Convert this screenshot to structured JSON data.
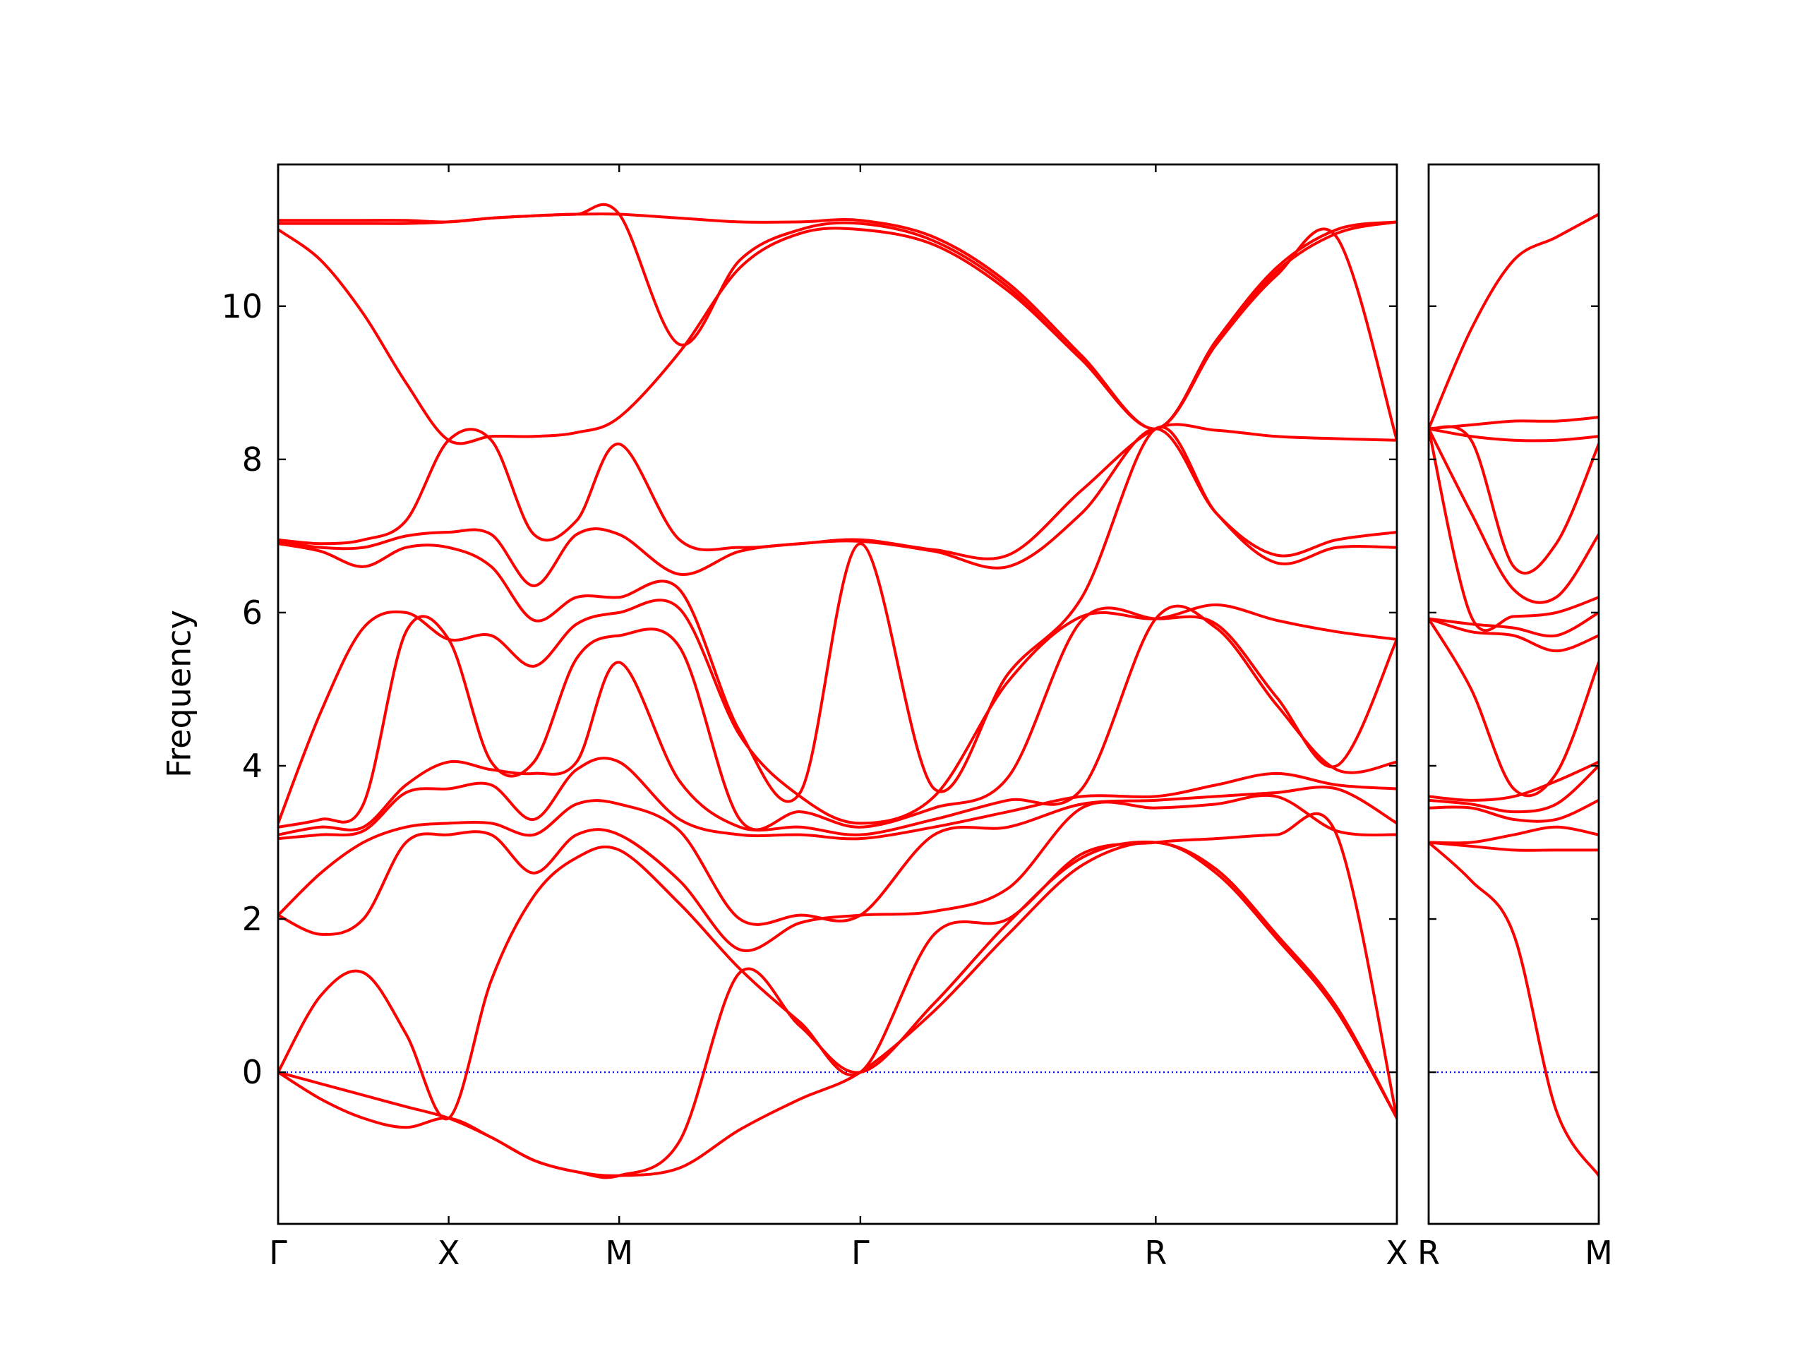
{
  "chart_data": [
    {
      "type": "line",
      "ylabel": "Frequency",
      "color": "#ff0000",
      "x": [
        0,
        0.25,
        0.5,
        0.75,
        1,
        1.25,
        1.5,
        1.75,
        2,
        2.354,
        2.707,
        3.061,
        3.414,
        3.847,
        4.28,
        4.713,
        5.146,
        5.5,
        5.853,
        6.207,
        6.56
      ],
      "xlim": [
        0,
        6.56
      ],
      "xticks": [
        {
          "value": 0,
          "label": "Γ"
        },
        {
          "value": 1,
          "label": "X"
        },
        {
          "value": 2,
          "label": "M"
        },
        {
          "value": 3.414,
          "label": "Γ"
        },
        {
          "value": 5.146,
          "label": "R"
        },
        {
          "value": 6.56,
          "label": "X"
        }
      ],
      "ylim": [
        -1.98,
        11.85
      ],
      "yticks": [
        0,
        2,
        4,
        6,
        8,
        10
      ],
      "ytick_labels": true,
      "hline": {
        "value": 0,
        "color": "#0000ff"
      },
      "series": [
        {
          "values": [
            0,
            -0.35,
            -0.6,
            -0.72,
            -0.6,
            -0.85,
            -1.15,
            -1.3,
            -1.35,
            -1.25,
            -0.75,
            -0.35,
            0,
            0.8,
            1.8,
            2.7,
            3,
            2.6,
            1.75,
            0.8,
            -0.6
          ]
        },
        {
          "values": [
            0,
            -0.15,
            -0.3,
            -0.45,
            -0.6,
            -0.85,
            -1.15,
            -1.3,
            -1.35,
            -0.9,
            1.3,
            0.6,
            0,
            0.9,
            1.95,
            2.8,
            3,
            2.65,
            1.8,
            0.85,
            -0.6
          ]
        },
        {
          "values": [
            0,
            1.0,
            1.3,
            0.5,
            -0.6,
            1.2,
            2.3,
            2.8,
            2.9,
            2.2,
            1.35,
            0.65,
            0,
            1.8,
            2.0,
            2.85,
            3,
            3.05,
            3.1,
            3.1,
            -0.6
          ]
        },
        {
          "values": [
            2.05,
            1.8,
            2.0,
            3.0,
            3.1,
            3.1,
            2.6,
            3.1,
            3.1,
            2.5,
            1.6,
            1.95,
            2.05,
            2.1,
            2.4,
            3.45,
            3.45,
            3.5,
            3.6,
            3.15,
            3.1
          ]
        },
        {
          "values": [
            2.05,
            2.6,
            3.0,
            3.2,
            3.25,
            3.25,
            3.1,
            3.5,
            3.5,
            3.15,
            2.0,
            2.05,
            2.05,
            3.1,
            3.2,
            3.5,
            3.55,
            3.6,
            3.65,
            3.7,
            3.25
          ]
        },
        {
          "values": [
            3.05,
            3.1,
            3.15,
            3.65,
            3.7,
            3.75,
            3.3,
            3.95,
            4.05,
            3.3,
            3.1,
            3.1,
            3.05,
            3.2,
            3.4,
            3.6,
            3.6,
            3.75,
            3.9,
            3.75,
            3.7
          ]
        },
        {
          "values": [
            3.1,
            3.2,
            3.2,
            3.75,
            4.05,
            3.95,
            3.9,
            4.05,
            5.35,
            3.8,
            3.2,
            3.2,
            3.1,
            3.3,
            3.55,
            3.7,
            5.92,
            5.8,
            4.8,
            3.95,
            4.05
          ]
        },
        {
          "values": [
            3.2,
            3.3,
            3.5,
            5.75,
            5.65,
            4.05,
            4.05,
            5.4,
            5.7,
            5.55,
            3.3,
            3.4,
            3.2,
            3.45,
            3.85,
            5.9,
            5.92,
            5.85,
            4.9,
            4.0,
            5.65
          ]
        },
        {
          "values": [
            3.25,
            4.7,
            5.8,
            6.0,
            5.65,
            5.7,
            5.3,
            5.85,
            6.0,
            6.05,
            4.4,
            3.6,
            3.25,
            3.6,
            5.1,
            5.95,
            5.92,
            6.1,
            5.9,
            5.75,
            5.65
          ]
        },
        {
          "values": [
            6.9,
            6.8,
            6.6,
            6.85,
            6.85,
            6.6,
            5.9,
            6.2,
            6.2,
            6.3,
            4.45,
            3.65,
            6.9,
            3.7,
            5.2,
            6.2,
            8.4,
            7.3,
            6.65,
            6.85,
            6.85
          ]
        },
        {
          "values": [
            6.93,
            6.85,
            6.85,
            7.0,
            7.05,
            7.02,
            6.35,
            7.02,
            7.02,
            6.5,
            6.8,
            6.9,
            6.93,
            6.8,
            6.6,
            7.3,
            8.4,
            7.3,
            6.75,
            6.95,
            7.05
          ]
        },
        {
          "values": [
            6.95,
            6.9,
            6.95,
            7.2,
            8.25,
            8.25,
            7.02,
            7.2,
            8.2,
            6.95,
            6.85,
            6.9,
            6.95,
            6.82,
            6.75,
            7.6,
            8.4,
            8.38,
            8.3,
            8.27,
            8.25
          ]
        },
        {
          "values": [
            11.0,
            10.6,
            9.9,
            9.0,
            8.25,
            8.3,
            8.3,
            8.35,
            8.55,
            9.4,
            10.5,
            10.95,
            11.0,
            10.8,
            10.2,
            9.3,
            8.4,
            9.5,
            10.4,
            10.9,
            8.25
          ]
        },
        {
          "values": [
            11.08,
            11.08,
            11.08,
            11.08,
            11.1,
            11.15,
            11.18,
            11.2,
            11.2,
            9.5,
            10.6,
            11.0,
            11.08,
            10.85,
            10.25,
            9.3,
            8.4,
            9.5,
            10.45,
            10.95,
            11.1
          ]
        },
        {
          "values": [
            11.12,
            11.12,
            11.12,
            11.12,
            11.1,
            11.15,
            11.18,
            11.2,
            11.2,
            11.15,
            11.1,
            11.1,
            11.12,
            10.9,
            10.3,
            9.35,
            8.4,
            9.55,
            10.5,
            11.0,
            11.1
          ]
        }
      ]
    },
    {
      "type": "line",
      "color": "#ff0000",
      "x": [
        0,
        0.25,
        0.5,
        0.75,
        1
      ],
      "xlim": [
        0,
        1
      ],
      "xticks": [
        {
          "value": 0,
          "label": "R"
        },
        {
          "value": 1,
          "label": "M"
        }
      ],
      "ylim": [
        -1.98,
        11.85
      ],
      "yticks": [
        0,
        2,
        4,
        6,
        8,
        10
      ],
      "ytick_labels": false,
      "hline": {
        "value": 0,
        "color": "#0000ff"
      },
      "series": [
        {
          "values": [
            3,
            2.5,
            1.8,
            -0.5,
            -1.35
          ]
        },
        {
          "values": [
            3,
            2.95,
            2.9,
            2.9,
            2.9
          ]
        },
        {
          "values": [
            3,
            3.0,
            3.1,
            3.2,
            3.1
          ]
        },
        {
          "values": [
            3.45,
            3.45,
            3.3,
            3.3,
            3.55
          ]
        },
        {
          "values": [
            3.55,
            3.5,
            3.4,
            3.5,
            4.0
          ]
        },
        {
          "values": [
            3.6,
            3.55,
            3.6,
            3.8,
            4.05
          ]
        },
        {
          "values": [
            5.92,
            5.0,
            3.7,
            3.9,
            5.35
          ]
        },
        {
          "values": [
            5.92,
            5.75,
            5.7,
            5.5,
            5.7
          ]
        },
        {
          "values": [
            5.92,
            5.85,
            5.8,
            5.7,
            6.0
          ]
        },
        {
          "values": [
            8.4,
            5.95,
            5.95,
            6.0,
            6.2
          ]
        },
        {
          "values": [
            8.4,
            7.3,
            6.3,
            6.2,
            7.02
          ]
        },
        {
          "values": [
            8.4,
            8.25,
            6.6,
            6.9,
            8.2
          ]
        },
        {
          "values": [
            8.4,
            8.3,
            8.25,
            8.25,
            8.3
          ]
        },
        {
          "values": [
            8.4,
            8.45,
            8.5,
            8.5,
            8.55
          ]
        },
        {
          "values": [
            8.4,
            9.7,
            10.6,
            10.9,
            11.2
          ]
        }
      ]
    }
  ]
}
